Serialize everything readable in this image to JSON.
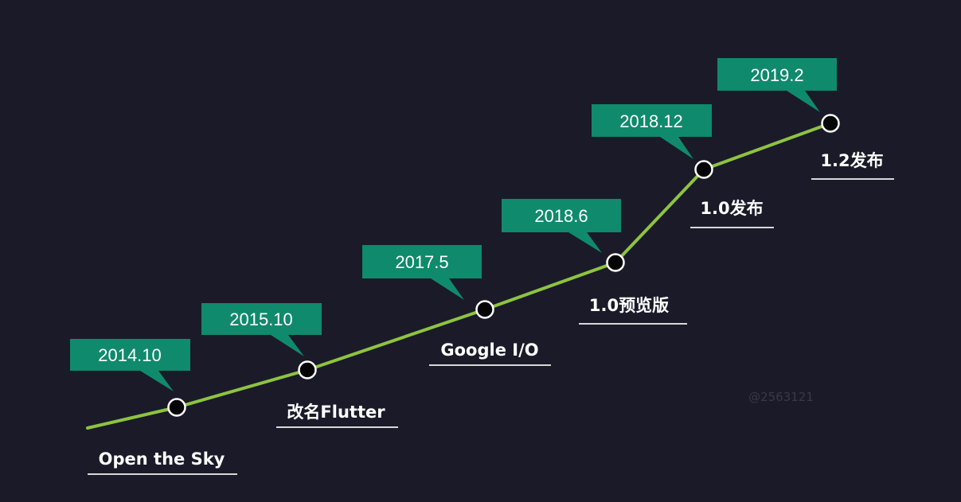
{
  "diagram": {
    "type": "timeline",
    "colors": {
      "background": "#1b1a29",
      "line": "#8dc43f",
      "callout": "#0f8a6c",
      "dot_fill": "#050505",
      "dot_stroke": "#ffffff",
      "text": "#ffffff",
      "underline": "#d8d8d8"
    },
    "milestones": [
      {
        "date": "2014.10",
        "label": "Open the Sky"
      },
      {
        "date": "2015.10",
        "label": "改名Flutter"
      },
      {
        "date": "2017.5",
        "label": "Google I/O"
      },
      {
        "date": "2018.6",
        "label": "1.0预览版"
      },
      {
        "date": "2018.12",
        "label": "1.0发布"
      },
      {
        "date": "2019.2",
        "label": "1.2发布"
      }
    ],
    "watermark": "@2563121"
  }
}
